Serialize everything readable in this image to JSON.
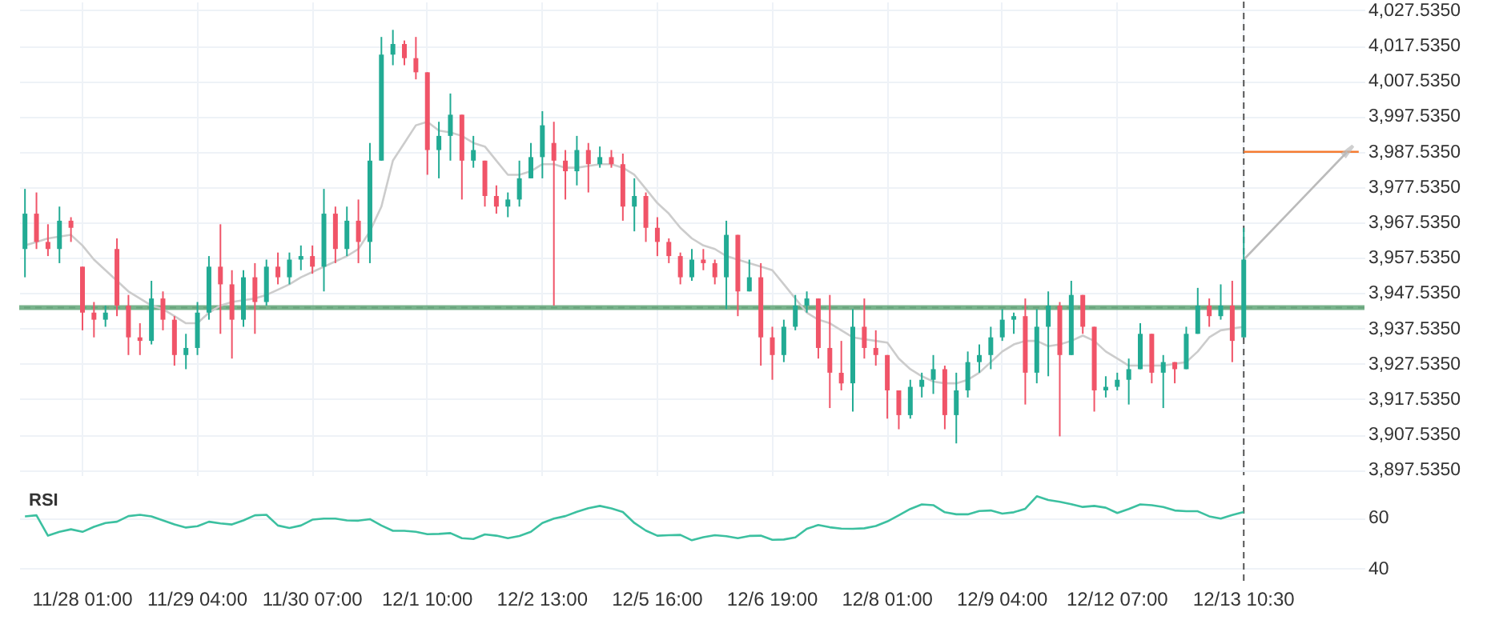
{
  "chart_data": [
    {
      "type": "candlestick",
      "categories": [
        null,
        null,
        null,
        null,
        null,
        "11/28 01:00",
        null,
        null,
        null,
        null,
        null,
        null,
        null,
        null,
        null,
        "11/29 04:00",
        null,
        null,
        null,
        null,
        null,
        null,
        null,
        null,
        null,
        "11/30 07:00",
        null,
        null,
        null,
        null,
        null,
        null,
        null,
        null,
        null,
        "12/1 10:00",
        null,
        null,
        null,
        null,
        null,
        null,
        null,
        null,
        null,
        "12/2 13:00",
        null,
        null,
        null,
        null,
        null,
        null,
        null,
        null,
        null,
        "12/5 16:00",
        null,
        null,
        null,
        null,
        null,
        null,
        null,
        null,
        null,
        "12/6 19:00",
        null,
        null,
        null,
        null,
        null,
        null,
        null,
        null,
        null,
        "12/8 01:00",
        null,
        null,
        null,
        null,
        null,
        null,
        null,
        null,
        null,
        "12/9 04:00",
        null,
        null,
        null,
        null,
        null,
        null,
        null,
        null,
        null,
        "12/12 07:00",
        null,
        null,
        null,
        null,
        null,
        null,
        null,
        null,
        null,
        null,
        "12/13 10:30",
        null,
        null,
        null,
        null,
        null,
        null,
        null,
        null,
        null,
        null
      ],
      "ohlc": [
        [
          3960,
          3977,
          3952,
          3970
        ],
        [
          3970,
          3976,
          3960,
          3962
        ],
        [
          3962,
          3967,
          3958,
          3960
        ],
        [
          3960,
          3972,
          3956,
          3968
        ],
        [
          3968,
          3969,
          3962,
          3966
        ],
        [
          3955,
          3955,
          3937,
          3942
        ],
        [
          3942,
          3945,
          3935,
          3940
        ],
        [
          3940,
          3944,
          3938,
          3942
        ],
        [
          3960,
          3963,
          3941,
          3944
        ],
        [
          3944,
          3947,
          3930,
          3935
        ],
        [
          3935,
          3939,
          3930,
          3934
        ],
        [
          3934,
          3951,
          3933,
          3946
        ],
        [
          3946,
          3948,
          3937,
          3940
        ],
        [
          3940,
          3941,
          3927,
          3930
        ],
        [
          3930,
          3936,
          3926,
          3932
        ],
        [
          3932,
          3945,
          3930,
          3942
        ],
        [
          3942,
          3958,
          3940,
          3955
        ],
        [
          3955,
          3967,
          3936,
          3950
        ],
        [
          3950,
          3954,
          3929,
          3940
        ],
        [
          3940,
          3954,
          3938,
          3952
        ],
        [
          3952,
          3956,
          3936,
          3945
        ],
        [
          3945,
          3957,
          3944,
          3955
        ],
        [
          3955,
          3959,
          3950,
          3952
        ],
        [
          3952,
          3959,
          3950,
          3957
        ],
        [
          3957,
          3961,
          3954,
          3958
        ],
        [
          3958,
          3961,
          3953,
          3955
        ],
        [
          3955,
          3977,
          3948,
          3970
        ],
        [
          3970,
          3972,
          3956,
          3960
        ],
        [
          3960,
          3972,
          3958,
          3968
        ],
        [
          3968,
          3974,
          3956,
          3962
        ],
        [
          3962,
          3990,
          3956,
          3985
        ],
        [
          3985,
          4020,
          3985,
          4015
        ],
        [
          4015,
          4022,
          4012,
          4018
        ],
        [
          4018,
          4019,
          4012,
          4014
        ],
        [
          4014,
          4020,
          4008,
          4010
        ],
        [
          4010,
          4010,
          3981,
          3988
        ],
        [
          3988,
          3996,
          3980,
          3992
        ],
        [
          3992,
          4004,
          3985,
          3998
        ],
        [
          3998,
          3998,
          3974,
          3985
        ],
        [
          3985,
          3992,
          3983,
          3988
        ],
        [
          3985,
          3985,
          3972,
          3975
        ],
        [
          3975,
          3978,
          3970,
          3972
        ],
        [
          3972,
          3976,
          3969,
          3974
        ],
        [
          3974,
          3985,
          3972,
          3980
        ],
        [
          3980,
          3990,
          3980,
          3986
        ],
        [
          3986,
          3999,
          3980,
          3995
        ],
        [
          3990,
          3996,
          3944,
          3985
        ],
        [
          3985,
          3988,
          3974,
          3982
        ],
        [
          3982,
          3992,
          3978,
          3988
        ],
        [
          3988,
          3990,
          3976,
          3984
        ],
        [
          3984,
          3989,
          3983,
          3986
        ],
        [
          3986,
          3988,
          3983,
          3984
        ],
        [
          3984,
          3987,
          3968,
          3972
        ],
        [
          3972,
          3980,
          3965,
          3975
        ],
        [
          3975,
          3976,
          3962,
          3966
        ],
        [
          3966,
          3969,
          3958,
          3962
        ],
        [
          3962,
          3963,
          3956,
          3958
        ],
        [
          3958,
          3959,
          3950,
          3952
        ],
        [
          3952,
          3960,
          3951,
          3957
        ],
        [
          3957,
          3960,
          3954,
          3956
        ],
        [
          3956,
          3957,
          3950,
          3952
        ],
        [
          3952,
          3968,
          3943,
          3964
        ],
        [
          3964,
          3964,
          3941,
          3948
        ],
        [
          3948,
          3957,
          3948,
          3952
        ],
        [
          3952,
          3956,
          3927,
          3935
        ],
        [
          3935,
          3938,
          3923,
          3930
        ],
        [
          3930,
          3940,
          3928,
          3938
        ],
        [
          3938,
          3947,
          3937,
          3944
        ],
        [
          3944,
          3948,
          3942,
          3946
        ],
        [
          3946,
          3946,
          3929,
          3932
        ],
        [
          3932,
          3947,
          3915,
          3925
        ],
        [
          3925,
          3934,
          3920,
          3922
        ],
        [
          3922,
          3943,
          3914,
          3938
        ],
        [
          3938,
          3946,
          3929,
          3932
        ],
        [
          3932,
          3937,
          3927,
          3930
        ],
        [
          3930,
          3930,
          3912,
          3920
        ],
        [
          3920,
          3920,
          3909,
          3913
        ],
        [
          3913,
          3923,
          3912,
          3921
        ],
        [
          3921,
          3925,
          3918,
          3923
        ],
        [
          3923,
          3930,
          3919,
          3926
        ],
        [
          3926,
          3927,
          3909,
          3913
        ],
        [
          3913,
          3925,
          3905,
          3920
        ],
        [
          3920,
          3931,
          3918,
          3928
        ],
        [
          3928,
          3933,
          3925,
          3930
        ],
        [
          3930,
          3938,
          3926,
          3935
        ],
        [
          3935,
          3943,
          3934,
          3940
        ],
        [
          3940,
          3942,
          3936,
          3941
        ],
        [
          3941,
          3946,
          3916,
          3925
        ],
        [
          3925,
          3943,
          3922,
          3938
        ],
        [
          3938,
          3948,
          3924,
          3944
        ],
        [
          3944,
          3945,
          3907,
          3930
        ],
        [
          3930,
          3951,
          3930,
          3947
        ],
        [
          3947,
          3947,
          3936,
          3938
        ],
        [
          3938,
          3938,
          3914,
          3920
        ],
        [
          3920,
          3924,
          3918,
          3921
        ],
        [
          3921,
          3925,
          3920,
          3923
        ],
        [
          3923,
          3929,
          3916,
          3926
        ],
        [
          3926,
          3939,
          3926,
          3936
        ],
        [
          3936,
          3936,
          3922,
          3925
        ],
        [
          3925,
          3930,
          3915,
          3928
        ],
        [
          3928,
          3928,
          3922,
          3926
        ],
        [
          3926,
          3938,
          3926,
          3936
        ],
        [
          3936,
          3949,
          3936,
          3944
        ],
        [
          3944,
          3946,
          3938,
          3941
        ],
        [
          3941,
          3950,
          3940,
          3944
        ],
        [
          3944,
          3951,
          3928,
          3934
        ],
        [
          3935,
          3966,
          3935,
          3957
        ],
        null,
        null,
        null,
        null,
        null,
        null,
        null,
        null,
        null,
        null
      ],
      "series": [
        {
          "type": "line",
          "color": "#cccccc",
          "values": [
            3961,
            3962,
            3963,
            3963.5,
            3964,
            3961,
            3957,
            3954,
            3951,
            3948,
            3946,
            3944,
            3943,
            3941,
            3939,
            3939,
            3942,
            3944,
            3945,
            3945.5,
            3946,
            3947,
            3948.5,
            3950,
            3952,
            3953.5,
            3955,
            3956.5,
            3958,
            3960,
            3965,
            3972,
            3985,
            3990,
            3995,
            3996,
            3993.5,
            3993,
            3992,
            3990,
            3989,
            3985,
            3981,
            3981,
            3982,
            3984,
            3984,
            3983,
            3983,
            3983.5,
            3984,
            3984,
            3983,
            3981,
            3977,
            3973,
            3970,
            3966,
            3963,
            3961,
            3960,
            3958,
            3957,
            3956,
            3955,
            3954,
            3950,
            3946,
            3942,
            3940,
            3939,
            3937,
            3935,
            3934.5,
            3934,
            3933.5,
            3929,
            3926,
            3924,
            3922.5,
            3922,
            3922,
            3923,
            3925,
            3928,
            3931,
            3933,
            3934,
            3934,
            3932.5,
            3933,
            3934,
            3935.5,
            3934,
            3931,
            3929,
            3927,
            3927,
            3927,
            3927,
            3927.5,
            3928,
            3931,
            3935,
            3937,
            3937.5,
            3938,
            null,
            null,
            null,
            null,
            null,
            null,
            null,
            null,
            null,
            null
          ]
        },
        {
          "type": "line",
          "color": "#f57c32",
          "values": [
            null,
            null,
            null,
            null,
            null,
            null,
            null,
            null,
            null,
            null,
            null,
            null,
            null,
            null,
            null,
            null,
            null,
            null,
            null,
            null,
            null,
            null,
            null,
            null,
            null,
            null,
            null,
            null,
            null,
            null,
            null,
            null,
            null,
            null,
            null,
            null,
            null,
            null,
            null,
            null,
            null,
            null,
            null,
            null,
            null,
            null,
            null,
            null,
            null,
            null,
            null,
            null,
            null,
            null,
            null,
            null,
            null,
            null,
            null,
            null,
            null,
            null,
            null,
            null,
            null,
            null,
            null,
            null,
            null,
            null,
            null,
            null,
            null,
            null,
            null,
            null,
            null,
            null,
            null,
            null,
            null,
            null,
            null,
            null,
            null,
            null,
            null,
            null,
            null,
            null,
            null,
            null,
            null,
            null,
            null,
            null,
            null,
            null,
            null,
            null,
            null,
            null,
            null,
            null,
            null,
            null,
            3987.5,
            3987.5,
            3987.5,
            3987.5,
            3987.5,
            3987.5,
            3987.5,
            3987.5,
            3987.5,
            3987.5,
            3987.5
          ]
        },
        {
          "type": "line",
          "color": "#bbbbbb",
          "values": [
            null,
            null,
            null,
            null,
            null,
            null,
            null,
            null,
            null,
            null,
            null,
            null,
            null,
            null,
            null,
            null,
            null,
            null,
            null,
            null,
            null,
            null,
            null,
            null,
            null,
            null,
            null,
            null,
            null,
            null,
            null,
            null,
            null,
            null,
            null,
            null,
            null,
            null,
            null,
            null,
            null,
            null,
            null,
            null,
            null,
            null,
            null,
            null,
            null,
            null,
            null,
            null,
            null,
            null,
            null,
            null,
            null,
            null,
            null,
            null,
            null,
            null,
            null,
            null,
            null,
            null,
            null,
            null,
            null,
            null,
            null,
            null,
            null,
            null,
            null,
            null,
            null,
            null,
            null,
            null,
            null,
            null,
            null,
            null,
            null,
            null,
            null,
            null,
            null,
            null,
            null,
            null,
            null,
            null,
            null,
            null,
            null,
            null,
            null,
            null,
            null,
            null,
            null,
            null,
            null,
            null,
            3957,
            null,
            null,
            null,
            null,
            null,
            null,
            null,
            null,
            3987.5,
            null
          ]
        }
      ],
      "ylim": [
        3896,
        4030
      ],
      "yticks": [
        {
          "value": 3897.535,
          "label": "3,897.5350"
        },
        {
          "value": 3907.535,
          "label": "3,907.5350"
        },
        {
          "value": 3917.535,
          "label": "3,917.5350"
        },
        {
          "value": 3927.535,
          "label": "3,927.5350"
        },
        {
          "value": 3937.535,
          "label": "3,937.5350"
        },
        {
          "value": 3947.535,
          "label": "3,947.5350"
        },
        {
          "value": 3957.535,
          "label": "3,957.5350"
        },
        {
          "value": 3967.535,
          "label": "3,967.5350"
        },
        {
          "value": 3977.535,
          "label": "3,977.5350"
        },
        {
          "value": 3987.535,
          "label": "3,987.5350"
        },
        {
          "value": 3997.535,
          "label": "3,997.5350"
        },
        {
          "value": 4007.535,
          "label": "4,007.5350"
        },
        {
          "value": 4017.535,
          "label": "4,017.5350"
        },
        {
          "value": 4027.535,
          "label": "4,027.5350"
        }
      ],
      "ref_lines": [
        {
          "axis": "y",
          "value": 3943.4,
          "color": "#555555",
          "line_style": "dashed"
        },
        {
          "axis": "y",
          "value": 3943.4,
          "color": "#6aab7f",
          "line_style": "solid"
        },
        {
          "axis": "x",
          "value": "12/13 10:30",
          "color": "#555555",
          "line_style": "dashed"
        }
      ],
      "grid": true,
      "legend": false,
      "tick_labels": "y"
    },
    {
      "type": "line",
      "title": "RSI",
      "categories": [
        null,
        null,
        null,
        null,
        null,
        "11/28 01:00",
        null,
        null,
        null,
        null,
        null,
        null,
        null,
        null,
        null,
        "11/29 04:00",
        null,
        null,
        null,
        null,
        null,
        null,
        null,
        null,
        null,
        "11/30 07:00",
        null,
        null,
        null,
        null,
        null,
        null,
        null,
        null,
        null,
        "12/1 10:00",
        null,
        null,
        null,
        null,
        null,
        null,
        null,
        null,
        null,
        "12/2 13:00",
        null,
        null,
        null,
        null,
        null,
        null,
        null,
        null,
        null,
        "12/5 16:00",
        null,
        null,
        null,
        null,
        null,
        null,
        null,
        null,
        null,
        "12/6 19:00",
        null,
        null,
        null,
        null,
        null,
        null,
        null,
        null,
        null,
        "12/8 01:00",
        null,
        null,
        null,
        null,
        null,
        null,
        null,
        null,
        null,
        "12/9 04:00",
        null,
        null,
        null,
        null,
        null,
        null,
        null,
        null,
        null,
        "12/12 07:00",
        null,
        null,
        null,
        null,
        null,
        null,
        null,
        null,
        null,
        null,
        "12/13 10:30",
        null,
        null,
        null,
        null,
        null,
        null,
        null,
        null,
        null,
        null
      ],
      "series": [
        {
          "color": "#3cc0a0",
          "values": [
            60.6,
            61,
            53,
            54.5,
            55.5,
            54.5,
            56.5,
            58,
            58.5,
            60.7,
            61.2,
            60.6,
            59,
            57.4,
            56.2,
            56.7,
            58.5,
            57.8,
            57.4,
            59,
            61,
            61.2,
            57,
            56,
            57,
            59.3,
            59.7,
            59.7,
            59,
            58.9,
            59.5,
            57,
            54.9,
            54.9,
            54.5,
            53.6,
            53.7,
            54,
            52,
            51.7,
            53.5,
            53,
            52,
            52.9,
            54.5,
            58,
            59.7,
            60.7,
            62.4,
            63.8,
            64.7,
            63.7,
            62.3,
            58,
            55,
            53,
            53.2,
            53.3,
            51.2,
            52.4,
            53.2,
            52.8,
            52,
            52.9,
            53,
            51.4,
            51.5,
            52.3,
            55.7,
            57.2,
            56.3,
            55.8,
            55.7,
            55.9,
            56.8,
            58.6,
            61,
            63.5,
            65.3,
            65,
            62.2,
            61.4,
            61.4,
            62.7,
            62.9,
            61.7,
            62.2,
            63.6,
            68.5,
            67,
            66.3,
            65.4,
            64.3,
            64.7,
            64,
            61.9,
            63.5,
            65.3,
            65,
            64.3,
            62.9,
            62.6,
            62.6,
            60.6,
            59.7,
            61.1,
            62.3,
            null,
            null,
            null,
            null,
            null,
            null,
            null,
            null,
            null,
            null
          ]
        }
      ],
      "ylim": [
        34,
        73
      ],
      "yticks": [
        40,
        60
      ],
      "ref_lines": [
        {
          "axis": "x",
          "value": "12/13 10:30",
          "color": "#555555",
          "line_style": "dashed"
        }
      ],
      "grid": "y",
      "legend": false,
      "marker": "none",
      "line_style": "solid"
    }
  ]
}
